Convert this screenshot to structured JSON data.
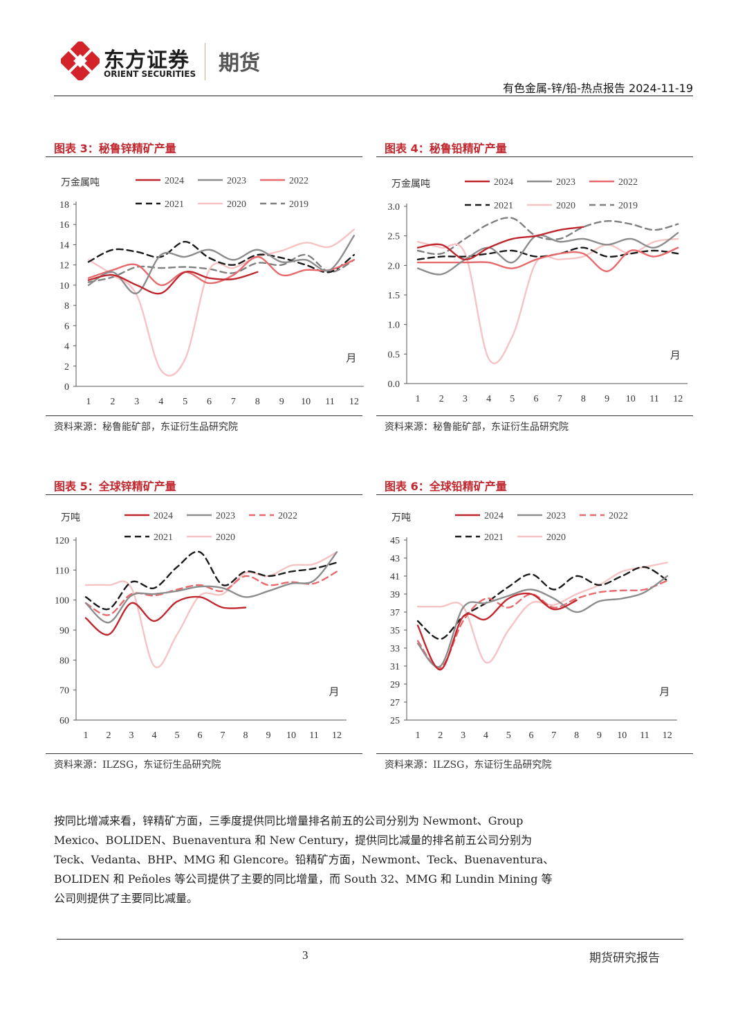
{
  "header": {
    "company_cn": "东方证券",
    "company_en": "ORIENT SECURITIES",
    "division": "期货",
    "report_title": "有色金属-锌/铅-热点报告 2024-11-19"
  },
  "figures": [
    {
      "title": "图表 3：秘鲁锌精矿产量",
      "source": "资料来源：秘鲁能矿部，东证衍生品研究院"
    },
    {
      "title": "图表 4：秘鲁铅精矿产量",
      "source": "资料来源：秘鲁能矿部，东证衍生品研究院"
    },
    {
      "title": "图表 5：全球锌精矿产量",
      "source": "资料来源：ILZSG，东证衍生品研究院"
    },
    {
      "title": "图表 6：全球铅精矿产量",
      "source": "资料来源：ILZSG，东证衍生品研究院"
    }
  ],
  "colors": {
    "2024": "#c0262d",
    "2023": "#8c8c8c",
    "2022": "#e8696c",
    "2021": "#1a1a1a",
    "2020": "#f5c3c3",
    "2019": "#7f7f7f"
  },
  "chart_data": [
    {
      "type": "line",
      "unit_label": "万金属吨",
      "xlabel": "月",
      "categories": [
        "1",
        "2",
        "3",
        "4",
        "5",
        "6",
        "7",
        "8",
        "9",
        "10",
        "11",
        "12"
      ],
      "ylim": [
        0,
        18
      ],
      "yticks": [
        0,
        2,
        4,
        6,
        8,
        10,
        12,
        14,
        16,
        18
      ],
      "series": [
        {
          "name": "2024",
          "style": "solid",
          "values": [
            10.5,
            11.0,
            10.0,
            9.2,
            11.3,
            10.7,
            10.6,
            11.3,
            null,
            null,
            null,
            null
          ]
        },
        {
          "name": "2023",
          "style": "solid",
          "values": [
            10.0,
            11.3,
            9.2,
            13.0,
            12.8,
            13.5,
            12.5,
            13.5,
            12.3,
            12.5,
            11.5,
            14.9
          ]
        },
        {
          "name": "2022",
          "style": "solid",
          "values": [
            10.7,
            11.5,
            12.0,
            10.0,
            11.3,
            10.2,
            11.0,
            12.8,
            11.0,
            11.5,
            11.5,
            12.5
          ]
        },
        {
          "name": "2021",
          "style": "dash",
          "values": [
            12.3,
            13.5,
            13.3,
            12.8,
            14.3,
            12.7,
            12.0,
            13.0,
            12.7,
            12.0,
            11.3,
            13.0
          ]
        },
        {
          "name": "2020",
          "style": "solid",
          "values": [
            12.5,
            11.0,
            9.0,
            1.6,
            2.7,
            11.5,
            11.7,
            12.8,
            13.4,
            14.2,
            13.8,
            15.5
          ]
        },
        {
          "name": "2019",
          "style": "dash",
          "values": [
            10.3,
            10.8,
            11.8,
            11.7,
            11.8,
            11.6,
            11.2,
            12.2,
            12.0,
            13.0,
            11.3,
            12.5
          ]
        }
      ]
    },
    {
      "type": "line",
      "unit_label": "万金属吨",
      "xlabel": "月",
      "categories": [
        "1",
        "2",
        "3",
        "4",
        "5",
        "6",
        "7",
        "8",
        "9",
        "10",
        "11",
        "12"
      ],
      "ylim": [
        0,
        3.0
      ],
      "yticks": [
        "0.0",
        "0.5",
        "1.0",
        "1.5",
        "2.0",
        "2.5",
        "3.0"
      ],
      "series": [
        {
          "name": "2024",
          "style": "solid",
          "values": [
            2.3,
            2.35,
            2.1,
            2.3,
            2.45,
            2.5,
            2.6,
            2.65,
            null,
            null,
            null,
            null
          ]
        },
        {
          "name": "2023",
          "style": "solid",
          "values": [
            1.95,
            1.85,
            2.1,
            2.3,
            2.05,
            2.5,
            2.4,
            2.45,
            2.35,
            2.45,
            2.3,
            2.55
          ]
        },
        {
          "name": "2022",
          "style": "solid",
          "values": [
            2.05,
            2.05,
            2.05,
            2.05,
            1.95,
            2.1,
            2.2,
            2.2,
            1.9,
            2.25,
            2.15,
            2.3
          ]
        },
        {
          "name": "2021",
          "style": "dash",
          "values": [
            2.1,
            2.15,
            2.15,
            2.2,
            2.25,
            2.15,
            2.2,
            2.3,
            2.15,
            2.2,
            2.25,
            2.2
          ]
        },
        {
          "name": "2020",
          "style": "solid",
          "values": [
            2.4,
            2.3,
            2.2,
            0.42,
            0.8,
            2.05,
            2.1,
            2.15,
            2.35,
            2.2,
            2.4,
            2.45
          ]
        },
        {
          "name": "2019",
          "style": "dash",
          "values": [
            2.25,
            2.2,
            2.45,
            2.7,
            2.8,
            2.5,
            2.45,
            2.65,
            2.75,
            2.7,
            2.6,
            2.7
          ]
        }
      ]
    },
    {
      "type": "line",
      "unit_label": "万吨",
      "xlabel": "月",
      "categories": [
        "1",
        "2",
        "3",
        "4",
        "5",
        "6",
        "7",
        "8",
        "9",
        "10",
        "11",
        "12"
      ],
      "ylim": [
        60,
        120
      ],
      "yticks": [
        60,
        70,
        80,
        90,
        100,
        110,
        120
      ],
      "series": [
        {
          "name": "2024",
          "style": "solid",
          "values": [
            94,
            88.5,
            99,
            93,
            99.5,
            101,
            97.5,
            97.5,
            null,
            null,
            null,
            null
          ]
        },
        {
          "name": "2023",
          "style": "solid",
          "values": [
            99,
            92.5,
            101.5,
            102,
            103,
            104.5,
            104,
            101,
            103,
            105.5,
            106.5,
            116
          ]
        },
        {
          "name": "2022",
          "style": "dash",
          "values": [
            99,
            95,
            102,
            101.5,
            103.5,
            105,
            103,
            108,
            105,
            106,
            105.5,
            109.5
          ]
        },
        {
          "name": "2021",
          "style": "dash",
          "values": [
            101,
            97,
            106,
            104,
            111,
            116,
            105,
            109.5,
            108,
            109.5,
            110.5,
            112.5
          ]
        },
        {
          "name": "2020",
          "style": "solid",
          "values": [
            105,
            105,
            104,
            78,
            88.5,
            101.5,
            102,
            109,
            108,
            111.5,
            112,
            116
          ]
        }
      ]
    },
    {
      "type": "line",
      "unit_label": "万吨",
      "xlabel": "月",
      "categories": [
        "1",
        "2",
        "3",
        "4",
        "5",
        "6",
        "7",
        "8",
        "9",
        "10",
        "11",
        "12"
      ],
      "ylim": [
        25,
        45
      ],
      "yticks": [
        25,
        27,
        29,
        31,
        33,
        35,
        37,
        39,
        41,
        43,
        45
      ],
      "series": [
        {
          "name": "2024",
          "style": "solid",
          "values": [
            35.5,
            30.6,
            36.5,
            36.2,
            38.5,
            39.0,
            37.3,
            38.3,
            null,
            null,
            null,
            null
          ]
        },
        {
          "name": "2023",
          "style": "solid",
          "values": [
            33.5,
            31.0,
            37.5,
            38.0,
            38.8,
            39.5,
            38.5,
            37.0,
            38.2,
            38.5,
            39.2,
            41.0
          ]
        },
        {
          "name": "2022",
          "style": "dash",
          "values": [
            33.8,
            30.8,
            36.0,
            38.5,
            37.5,
            39.0,
            37.5,
            38.5,
            39.2,
            39.4,
            39.5,
            40.5
          ]
        },
        {
          "name": "2021",
          "style": "dash",
          "values": [
            36.0,
            34.0,
            36.5,
            38.0,
            39.8,
            41.2,
            39.5,
            41.0,
            40.0,
            41.0,
            42.0,
            40.5
          ]
        },
        {
          "name": "2020",
          "style": "solid",
          "values": [
            37.6,
            37.6,
            37.6,
            31.4,
            35.0,
            38.0,
            37.8,
            39.0,
            40.0,
            41.5,
            42.0,
            42.5
          ]
        }
      ]
    }
  ],
  "body": {
    "paragraph": "按同比增减来看，锌精矿方面，三季度提供同比增量排名前五的公司分别为 Newmont、Group Mexico、BOLIDEN、Buenaventura 和 New Century，提供同比减量的排名前五公司分别为 Teck、Vedanta、BHP、MMG 和 Glencore。铅精矿方面，Newmont、Teck、Buenaventura、BOLIDEN 和 Peñoles 等公司提供了主要的同比增量，而 South 32、MMG 和 Lundin Mining 等公司则提供了主要同比减量。"
  },
  "footer": {
    "page_number": "3",
    "label": "期货研究报告"
  }
}
